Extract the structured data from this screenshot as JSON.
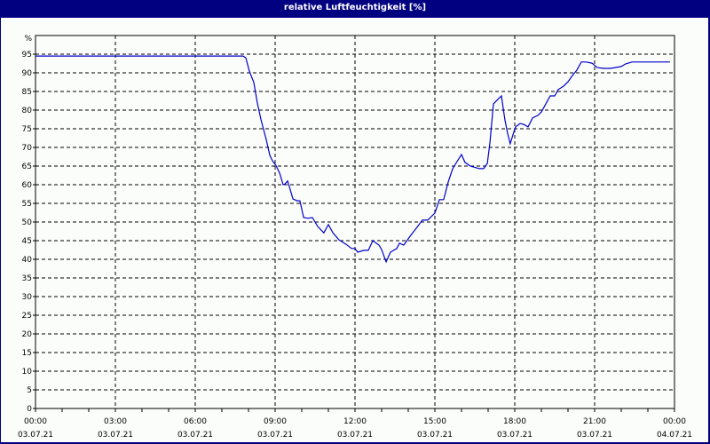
{
  "window": {
    "title": "relative Luftfeuchtigkeit [%]"
  },
  "colors": {
    "title_bg": "#000080",
    "title_fg": "#ffffff",
    "plot_bg": "#fbfdfb",
    "series": "#0000c8",
    "grid": "#000000"
  },
  "chart_data": {
    "type": "line",
    "title": "relative Luftfeuchtigkeit [%]",
    "xlabel": "",
    "ylabel": "%",
    "ylim": [
      0,
      100
    ],
    "xlim_hours": [
      0,
      24
    ],
    "grid": true,
    "legend": "none",
    "y_ticks": [
      0,
      5,
      10,
      15,
      20,
      25,
      30,
      35,
      40,
      45,
      50,
      55,
      60,
      65,
      70,
      75,
      80,
      85,
      90,
      95
    ],
    "y_unit_label": "%",
    "x_ticks": [
      {
        "hour": 0,
        "time": "00:00",
        "date": "03.07.21"
      },
      {
        "hour": 3,
        "time": "03:00",
        "date": "03.07.21"
      },
      {
        "hour": 6,
        "time": "06:00",
        "date": "03.07.21"
      },
      {
        "hour": 9,
        "time": "09:00",
        "date": "03.07.21"
      },
      {
        "hour": 12,
        "time": "12:00",
        "date": "03.07.21"
      },
      {
        "hour": 15,
        "time": "15:00",
        "date": "03.07.21"
      },
      {
        "hour": 18,
        "time": "18:00",
        "date": "03.07.21"
      },
      {
        "hour": 21,
        "time": "21:00",
        "date": "03.07.21"
      },
      {
        "hour": 24,
        "time": "00:00",
        "date": "04.07.21"
      }
    ],
    "series": [
      {
        "name": "relative Luftfeuchtigkeit",
        "x_hours": [
          0,
          7.8,
          7.9,
          8.03,
          8.2,
          8.33,
          8.47,
          8.67,
          8.8,
          8.9,
          9.03,
          9.17,
          9.3,
          9.37,
          9.47,
          9.57,
          9.67,
          9.83,
          9.93,
          10.07,
          10.23,
          10.4,
          10.6,
          10.83,
          11.0,
          11.17,
          11.4,
          11.67,
          11.87,
          12.0,
          12.1,
          12.33,
          12.5,
          12.67,
          12.9,
          13.0,
          13.17,
          13.33,
          13.57,
          13.67,
          13.83,
          14.07,
          14.33,
          14.53,
          14.73,
          15.0,
          15.17,
          15.33,
          15.5,
          15.67,
          15.83,
          16.0,
          16.13,
          16.33,
          16.67,
          16.83,
          16.97,
          17.07,
          17.2,
          17.37,
          17.5,
          17.63,
          17.73,
          17.83,
          17.93,
          18.03,
          18.2,
          18.33,
          18.5,
          18.67,
          18.87,
          19.0,
          19.2,
          19.33,
          19.5,
          19.63,
          19.83,
          20.0,
          20.17,
          20.33,
          20.5,
          20.67,
          20.9,
          21.1,
          21.33,
          21.6,
          22.0,
          22.17,
          22.4,
          23.83
        ],
        "values": [
          94.5,
          94.5,
          94,
          90.5,
          87.4,
          82,
          77.4,
          72,
          67.9,
          66.4,
          65.2,
          63.1,
          60,
          60.2,
          61,
          58.6,
          56.2,
          55.7,
          55.7,
          51.2,
          51,
          51.2,
          48.8,
          47.1,
          49.3,
          47.1,
          45.2,
          44,
          42.9,
          42.9,
          41.9,
          42.4,
          42.4,
          45,
          43.8,
          42.6,
          39.3,
          41.9,
          42.9,
          44.3,
          43.8,
          46.2,
          48.6,
          50.5,
          50.5,
          52.4,
          56,
          56,
          60.7,
          64.3,
          66.2,
          68.1,
          66,
          65,
          64.3,
          64.3,
          65.7,
          71.4,
          81.7,
          82.9,
          83.8,
          77.4,
          73.8,
          71,
          73.3,
          75.5,
          76.4,
          76.2,
          75.5,
          77.9,
          78.6,
          79.5,
          82.1,
          83.8,
          83.8,
          85.5,
          86.4,
          87.6,
          89.3,
          90.7,
          92.9,
          92.9,
          92.6,
          91.4,
          91.2,
          91.2,
          91.7,
          92.4,
          92.9,
          92.9
        ]
      }
    ]
  }
}
